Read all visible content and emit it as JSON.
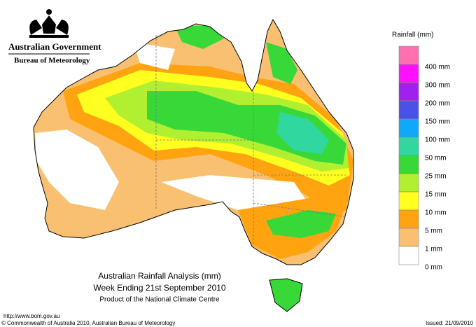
{
  "header": {
    "government": "Australian Government",
    "bureau": "Bureau of Meteorology"
  },
  "legend": {
    "title": "Rainfall (mm)",
    "items": [
      {
        "label": "400 mm",
        "color": "#ff70b0"
      },
      {
        "label": "300 mm",
        "color": "#ff10ff"
      },
      {
        "label": "200 mm",
        "color": "#a020f0"
      },
      {
        "label": "150 mm",
        "color": "#4a50e8"
      },
      {
        "label": "100 mm",
        "color": "#10a8f8"
      },
      {
        "label": "50 mm",
        "color": "#30d8a0"
      },
      {
        "label": "25 mm",
        "color": "#38d838"
      },
      {
        "label": "15 mm",
        "color": "#b0f030"
      },
      {
        "label": "10 mm",
        "color": "#ffff20"
      },
      {
        "label": "5 mm",
        "color": "#ffa410"
      },
      {
        "label": "1 mm",
        "color": "#f8c070"
      },
      {
        "label": "0 mm",
        "color": "#ffffff"
      }
    ]
  },
  "map": {
    "title": "Australian Rainfall Analysis (mm)",
    "subtitle": "Week Ending 21st September 2010",
    "credit": "Product of the National Climate Centre"
  },
  "footer": {
    "url": "http://www.bom.gov.au",
    "copyright": "© Commonwealth of Australia 2010, Australian Bureau of Meteorology",
    "issued": "Issued: 21/09/2010"
  }
}
